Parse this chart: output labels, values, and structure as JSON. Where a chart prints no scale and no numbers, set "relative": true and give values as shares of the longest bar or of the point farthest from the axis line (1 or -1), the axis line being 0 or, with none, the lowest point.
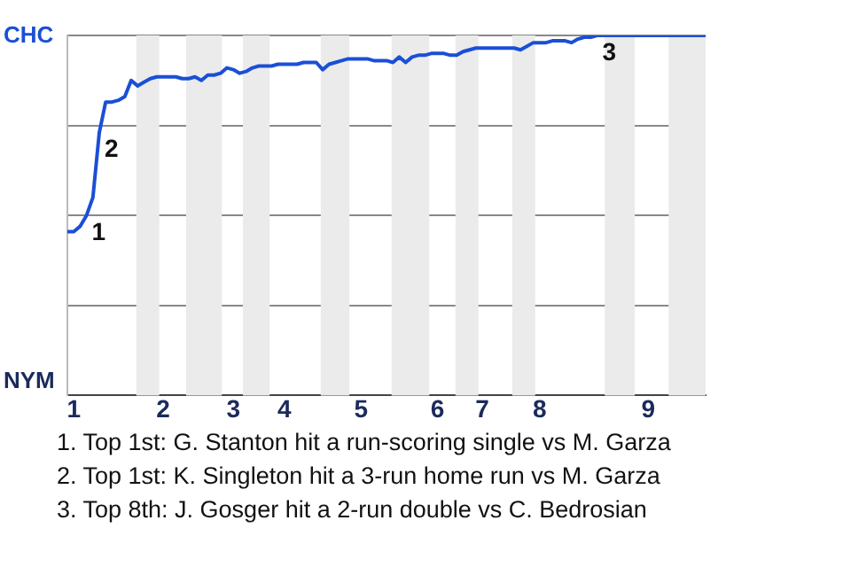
{
  "chart_data": {
    "type": "line",
    "relative": true,
    "categories": [
      null,
      "1",
      null,
      null,
      null,
      null,
      null,
      null,
      null,
      null,
      null,
      null,
      null,
      null,
      null,
      "2",
      null,
      null,
      null,
      null,
      null,
      null,
      null,
      null,
      null,
      null,
      "3",
      null,
      null,
      null,
      null,
      null,
      null,
      null,
      "4",
      null,
      null,
      null,
      null,
      null,
      null,
      null,
      null,
      null,
      null,
      null,
      "5",
      null,
      null,
      null,
      null,
      null,
      null,
      null,
      null,
      null,
      null,
      null,
      "6",
      null,
      null,
      null,
      null,
      null,
      null,
      "7",
      null,
      null,
      null,
      null,
      null,
      null,
      null,
      null,
      "8",
      null,
      null,
      null,
      null,
      null,
      null,
      null,
      null,
      null,
      null,
      null,
      null,
      null,
      null,
      null,
      null,
      "9",
      null,
      null,
      null,
      null,
      null,
      null,
      null,
      null,
      null
    ],
    "series": [
      {
        "color": "#1a4fd6",
        "values": [
          0.455,
          0.455,
          0.47,
          0.5,
          0.55,
          0.73,
          0.815,
          0.815,
          0.82,
          0.83,
          0.875,
          0.86,
          0.87,
          0.88,
          0.885,
          0.885,
          0.885,
          0.885,
          0.88,
          0.88,
          0.885,
          0.875,
          0.89,
          0.89,
          0.895,
          0.91,
          0.905,
          0.895,
          0.9,
          0.91,
          0.915,
          0.915,
          0.915,
          0.92,
          0.92,
          0.92,
          0.92,
          0.925,
          0.925,
          0.925,
          0.905,
          0.92,
          0.925,
          0.93,
          0.935,
          0.935,
          0.935,
          0.935,
          0.93,
          0.93,
          0.93,
          0.925,
          0.94,
          0.925,
          0.94,
          0.945,
          0.945,
          0.95,
          0.95,
          0.95,
          0.945,
          0.945,
          0.955,
          0.96,
          0.965,
          0.965,
          0.965,
          0.965,
          0.965,
          0.965,
          0.965,
          0.96,
          0.97,
          0.98,
          0.98,
          0.98,
          0.985,
          0.985,
          0.985,
          0.98,
          0.99,
          0.995,
          0.995,
          1,
          1,
          1,
          1,
          1,
          1,
          1,
          1,
          1,
          1,
          1,
          1,
          1,
          1,
          1,
          1,
          1,
          1
        ]
      }
    ],
    "grid": "y",
    "legend": false,
    "marker": "none",
    "line_style": "solid",
    "annotations": [
      "CHC",
      "NYM",
      "1",
      "2",
      "3",
      "1. Top 1st: G. Stanton hit a run-scoring single vs M. Garza",
      "2. Top 1st: K. Singleton hit a 3-run home run vs M. Garza",
      "3. Top 8th: J. Gosger hit a 2-run double vs C. Bedrosian"
    ]
  }
}
